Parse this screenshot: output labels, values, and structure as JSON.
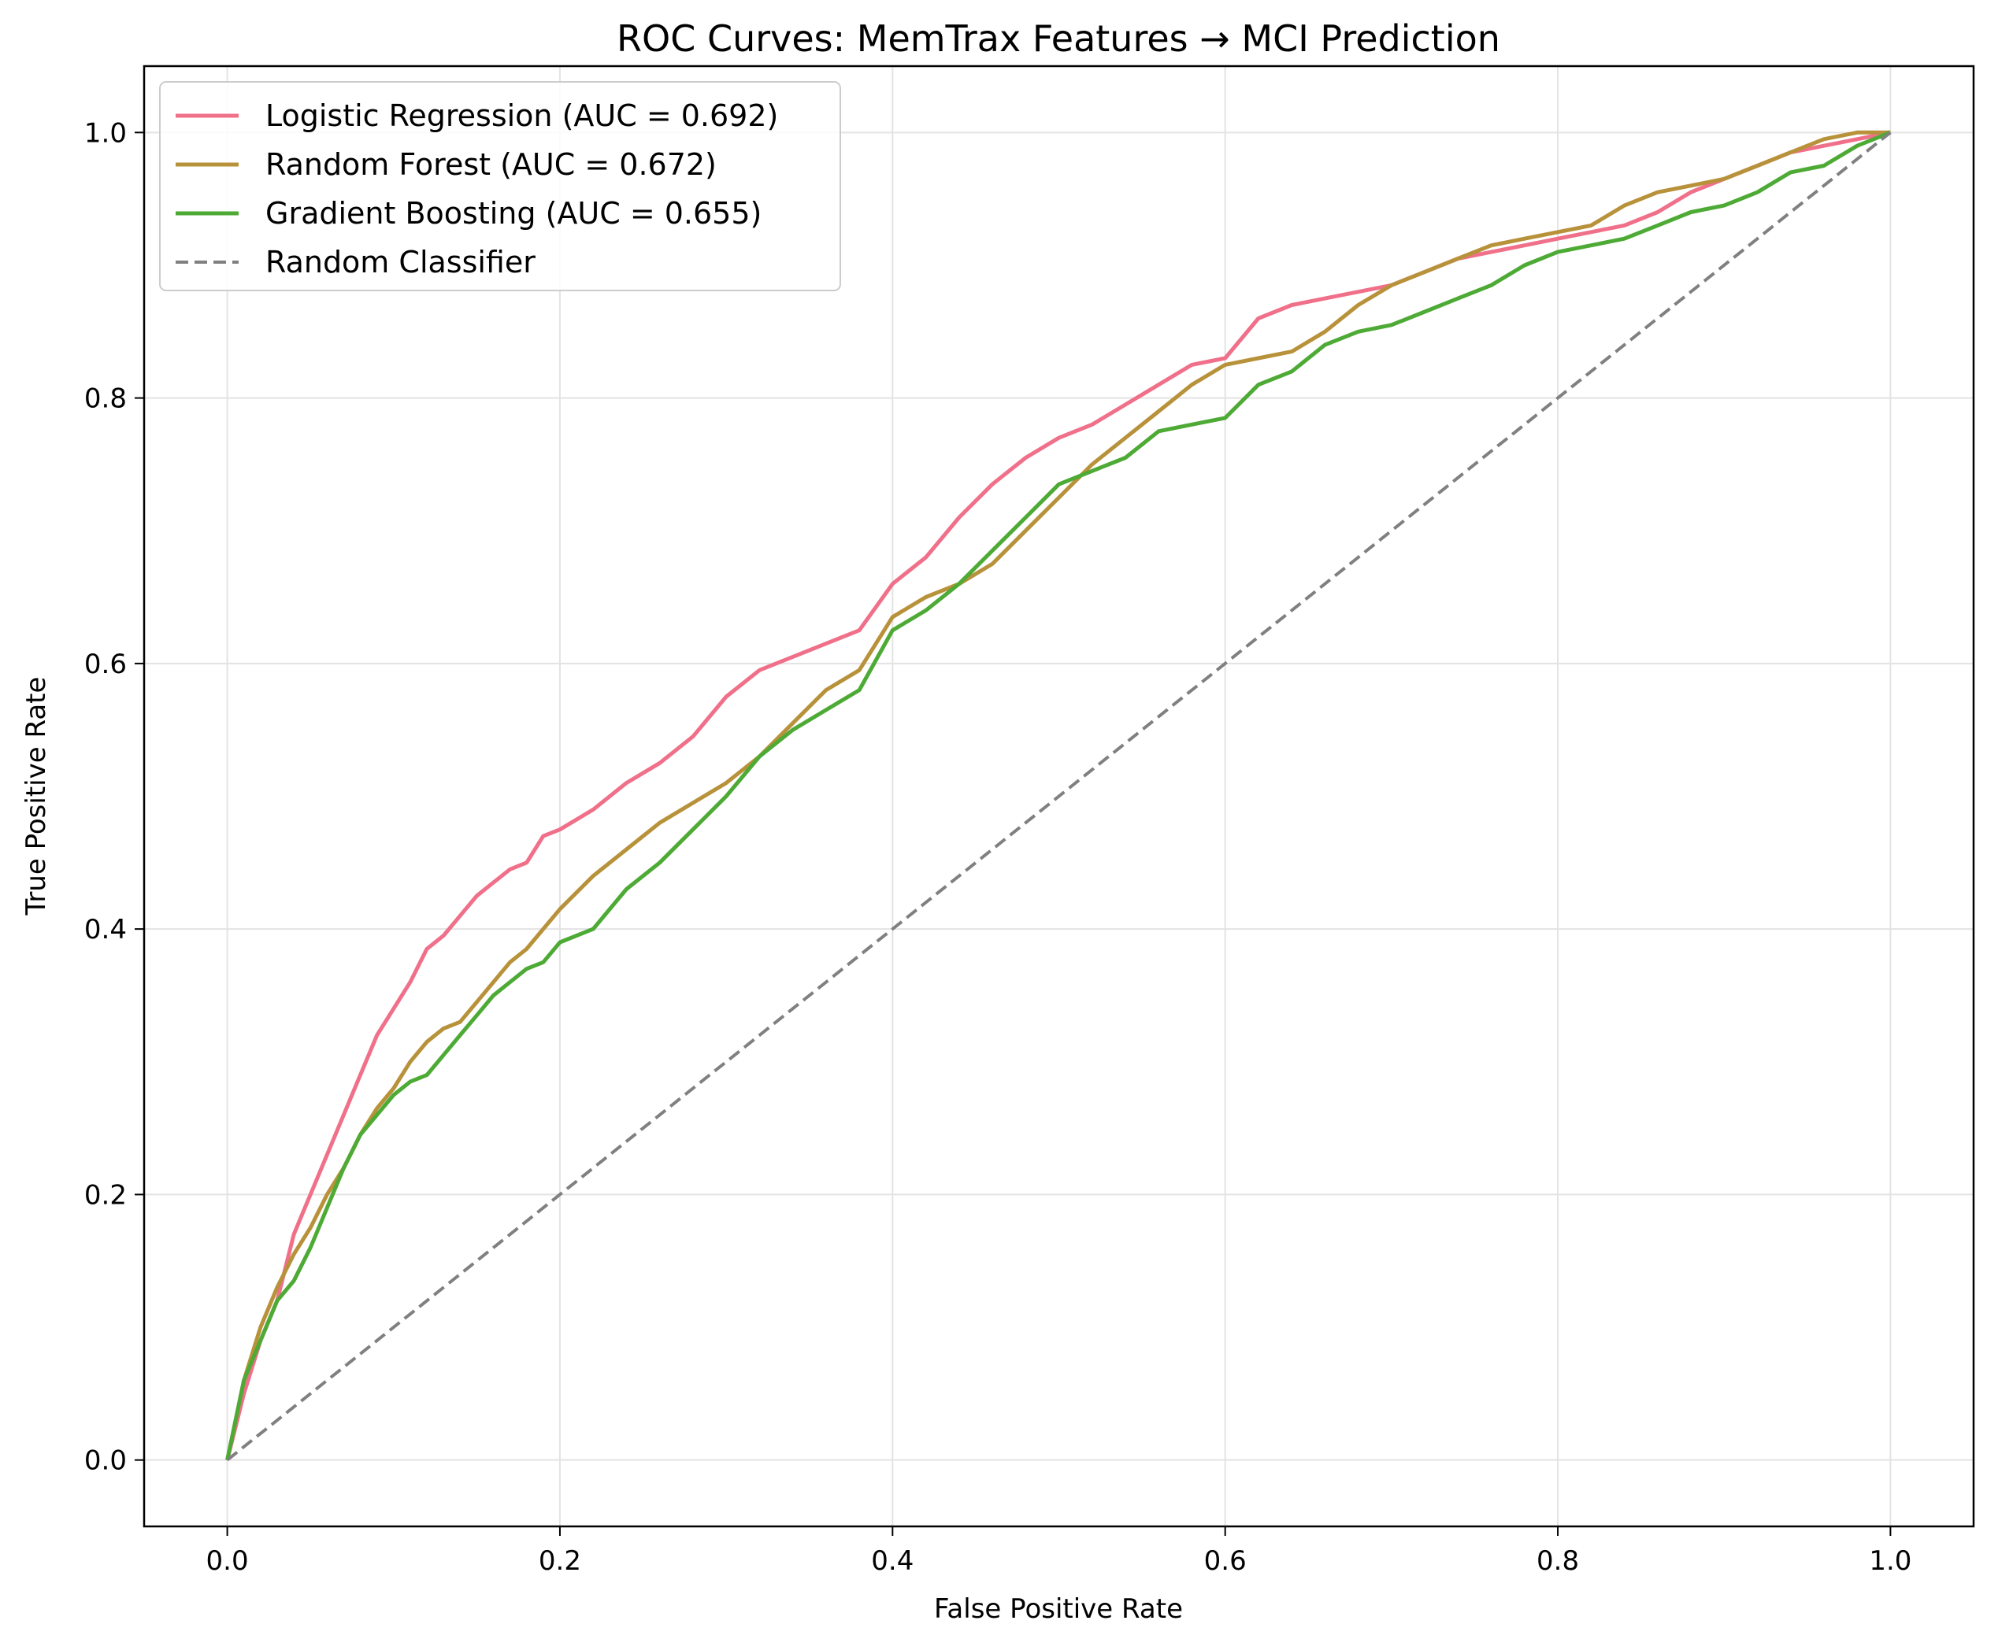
{
  "chart_data": {
    "type": "line",
    "title": "ROC Curves: MemTrax Features → MCI Prediction",
    "xlabel": "False Positive Rate",
    "ylabel": "True Positive Rate",
    "xlim": [
      -0.05,
      1.05
    ],
    "ylim": [
      -0.05,
      1.05
    ],
    "xticks": [
      0.0,
      0.2,
      0.4,
      0.6,
      0.8,
      1.0
    ],
    "yticks": [
      0.0,
      0.2,
      0.4,
      0.6,
      0.8,
      1.0
    ],
    "xtick_labels": [
      "0.0",
      "0.2",
      "0.4",
      "0.6",
      "0.8",
      "1.0"
    ],
    "ytick_labels": [
      "0.0",
      "0.2",
      "0.4",
      "0.6",
      "0.8",
      "1.0"
    ],
    "grid": true,
    "legend_position": "top-left",
    "series": [
      {
        "name": "Logistic Regression (AUC = 0.692)",
        "color": "#f0708a",
        "style": "solid",
        "x": [
          0.0,
          0.01,
          0.02,
          0.03,
          0.04,
          0.05,
          0.06,
          0.07,
          0.08,
          0.09,
          0.1,
          0.11,
          0.12,
          0.13,
          0.14,
          0.15,
          0.16,
          0.17,
          0.18,
          0.19,
          0.2,
          0.22,
          0.24,
          0.26,
          0.28,
          0.3,
          0.32,
          0.34,
          0.36,
          0.38,
          0.4,
          0.42,
          0.44,
          0.46,
          0.48,
          0.5,
          0.52,
          0.54,
          0.56,
          0.58,
          0.6,
          0.62,
          0.64,
          0.66,
          0.68,
          0.7,
          0.72,
          0.74,
          0.76,
          0.78,
          0.8,
          0.82,
          0.84,
          0.86,
          0.88,
          0.9,
          0.92,
          0.94,
          0.96,
          0.98,
          1.0
        ],
        "y": [
          0.0,
          0.05,
          0.09,
          0.12,
          0.17,
          0.2,
          0.23,
          0.26,
          0.29,
          0.32,
          0.34,
          0.36,
          0.385,
          0.395,
          0.41,
          0.425,
          0.435,
          0.445,
          0.45,
          0.47,
          0.475,
          0.49,
          0.51,
          0.525,
          0.545,
          0.575,
          0.595,
          0.605,
          0.615,
          0.625,
          0.66,
          0.68,
          0.71,
          0.735,
          0.755,
          0.77,
          0.78,
          0.795,
          0.81,
          0.825,
          0.83,
          0.86,
          0.87,
          0.875,
          0.88,
          0.885,
          0.895,
          0.905,
          0.91,
          0.915,
          0.92,
          0.925,
          0.93,
          0.94,
          0.955,
          0.965,
          0.975,
          0.985,
          0.99,
          0.995,
          1.0
        ]
      },
      {
        "name": "Random Forest (AUC = 0.672)",
        "color": "#b8923a",
        "style": "solid",
        "x": [
          0.0,
          0.01,
          0.02,
          0.03,
          0.04,
          0.05,
          0.06,
          0.07,
          0.08,
          0.09,
          0.1,
          0.11,
          0.12,
          0.13,
          0.14,
          0.15,
          0.16,
          0.17,
          0.18,
          0.19,
          0.2,
          0.22,
          0.24,
          0.26,
          0.28,
          0.3,
          0.32,
          0.34,
          0.36,
          0.38,
          0.4,
          0.42,
          0.44,
          0.46,
          0.48,
          0.5,
          0.52,
          0.54,
          0.56,
          0.58,
          0.6,
          0.62,
          0.64,
          0.66,
          0.68,
          0.7,
          0.72,
          0.74,
          0.76,
          0.78,
          0.8,
          0.82,
          0.84,
          0.86,
          0.88,
          0.9,
          0.92,
          0.94,
          0.96,
          0.98,
          1.0
        ],
        "y": [
          0.0,
          0.06,
          0.1,
          0.13,
          0.155,
          0.175,
          0.2,
          0.22,
          0.245,
          0.265,
          0.28,
          0.3,
          0.315,
          0.325,
          0.33,
          0.345,
          0.36,
          0.375,
          0.385,
          0.4,
          0.415,
          0.44,
          0.46,
          0.48,
          0.495,
          0.51,
          0.53,
          0.555,
          0.58,
          0.595,
          0.635,
          0.65,
          0.66,
          0.675,
          0.7,
          0.725,
          0.75,
          0.77,
          0.79,
          0.81,
          0.825,
          0.83,
          0.835,
          0.85,
          0.87,
          0.885,
          0.895,
          0.905,
          0.915,
          0.92,
          0.925,
          0.93,
          0.945,
          0.955,
          0.96,
          0.965,
          0.975,
          0.985,
          0.995,
          1.0,
          1.0
        ]
      },
      {
        "name": "Gradient Boosting (AUC = 0.655)",
        "color": "#4daa35",
        "style": "solid",
        "x": [
          0.0,
          0.01,
          0.02,
          0.03,
          0.04,
          0.05,
          0.06,
          0.07,
          0.08,
          0.09,
          0.1,
          0.11,
          0.12,
          0.13,
          0.14,
          0.15,
          0.16,
          0.17,
          0.18,
          0.19,
          0.2,
          0.22,
          0.24,
          0.26,
          0.28,
          0.3,
          0.32,
          0.34,
          0.36,
          0.38,
          0.4,
          0.42,
          0.44,
          0.46,
          0.48,
          0.5,
          0.52,
          0.54,
          0.56,
          0.58,
          0.6,
          0.62,
          0.64,
          0.66,
          0.68,
          0.7,
          0.72,
          0.74,
          0.76,
          0.78,
          0.8,
          0.82,
          0.84,
          0.86,
          0.88,
          0.9,
          0.92,
          0.94,
          0.96,
          0.98,
          1.0
        ],
        "y": [
          0.0,
          0.06,
          0.09,
          0.12,
          0.135,
          0.16,
          0.19,
          0.22,
          0.245,
          0.26,
          0.275,
          0.285,
          0.29,
          0.305,
          0.32,
          0.335,
          0.35,
          0.36,
          0.37,
          0.375,
          0.39,
          0.4,
          0.43,
          0.45,
          0.475,
          0.5,
          0.53,
          0.55,
          0.565,
          0.58,
          0.625,
          0.64,
          0.66,
          0.685,
          0.71,
          0.735,
          0.745,
          0.755,
          0.775,
          0.78,
          0.785,
          0.81,
          0.82,
          0.84,
          0.85,
          0.855,
          0.865,
          0.875,
          0.885,
          0.9,
          0.91,
          0.915,
          0.92,
          0.93,
          0.94,
          0.945,
          0.955,
          0.97,
          0.975,
          0.99,
          1.0
        ]
      },
      {
        "name": "Random Classifier",
        "color": "#808080",
        "style": "dashed",
        "x": [
          0.0,
          1.0
        ],
        "y": [
          0.0,
          1.0
        ]
      }
    ]
  }
}
